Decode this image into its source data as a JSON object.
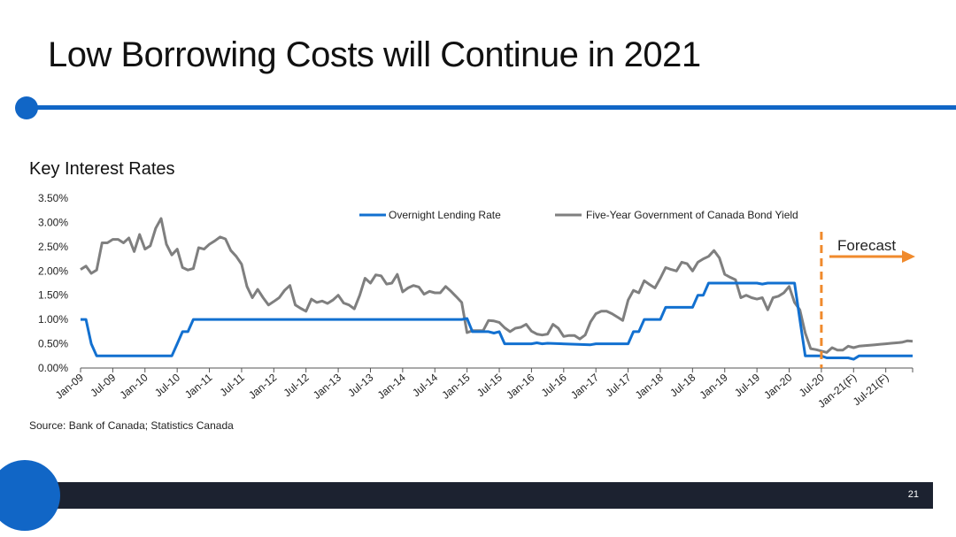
{
  "slide": {
    "title": "Low Borrowing Costs will Continue in 2021",
    "page_number": "21",
    "source": "Source: Bank of Canada; Statistics Canada",
    "accent_color": "#1166c6",
    "footer_color": "#1c2230"
  },
  "chart_data": {
    "type": "line",
    "title": "Key Interest Rates",
    "xlabel": "",
    "ylabel": "",
    "ylim": [
      0,
      3.5
    ],
    "y_ticks": [
      "0.00%",
      "0.50%",
      "1.00%",
      "1.50%",
      "2.00%",
      "2.50%",
      "3.00%",
      "3.50%"
    ],
    "x_tick_labels": [
      "Jan-09",
      "Jul-09",
      "Jan-10",
      "Jul-10",
      "Jan-11",
      "Jul-11",
      "Jan-12",
      "Jul-12",
      "Jan-13",
      "Jul-13",
      "Jan-14",
      "Jul-14",
      "Jan-15",
      "Jul-15",
      "Jan-16",
      "Jul-16",
      "Jan-17",
      "Jul-17",
      "Jan-18",
      "Jul-18",
      "Jan-19",
      "Jul-19",
      "Jan-20",
      "Jul-20",
      "Jan-21(F)",
      "Jul-21(F)"
    ],
    "grid": false,
    "legend_position": "top",
    "forecast_marker": {
      "label": "Forecast",
      "at": "Jul-20",
      "color": "#f08a2c"
    },
    "series": [
      {
        "name": "Overnight Lending Rate",
        "color": "#1270d0",
        "points": [
          [
            "Jan-09",
            1.0
          ],
          [
            "Feb-09",
            1.0
          ],
          [
            "Mar-09",
            0.5
          ],
          [
            "Apr-09",
            0.25
          ],
          [
            "Jun-10",
            0.25
          ],
          [
            "Jul-10",
            0.5
          ],
          [
            "Aug-10",
            0.75
          ],
          [
            "Sep-10",
            0.75
          ],
          [
            "Oct-10",
            1.0
          ],
          [
            "Dec-14",
            1.0
          ],
          [
            "Jan-15",
            1.02
          ],
          [
            "Feb-15",
            0.75
          ],
          [
            "May-15",
            0.75
          ],
          [
            "Jun-15",
            0.72
          ],
          [
            "Jul-15",
            0.75
          ],
          [
            "Aug-15",
            0.5
          ],
          [
            "Jan-16",
            0.5
          ],
          [
            "Feb-16",
            0.52
          ],
          [
            "Mar-16",
            0.5
          ],
          [
            "Apr-16",
            0.51
          ],
          [
            "Dec-16",
            0.48
          ],
          [
            "Jan-17",
            0.5
          ],
          [
            "Jul-17",
            0.5
          ],
          [
            "Aug-17",
            0.75
          ],
          [
            "Sep-17",
            0.75
          ],
          [
            "Oct-17",
            1.0
          ],
          [
            "Jan-18",
            1.0
          ],
          [
            "Feb-18",
            1.25
          ],
          [
            "Jul-18",
            1.25
          ],
          [
            "Aug-18",
            1.5
          ],
          [
            "Sep-18",
            1.5
          ],
          [
            "Oct-18",
            1.75
          ],
          [
            "Jul-19",
            1.75
          ],
          [
            "Aug-19",
            1.73
          ],
          [
            "Sep-19",
            1.75
          ],
          [
            "Feb-20",
            1.75
          ],
          [
            "Mar-20",
            1.0
          ],
          [
            "Apr-20",
            0.25
          ],
          [
            "May-20",
            0.25
          ],
          [
            "Jul-20",
            0.25
          ],
          [
            "Aug-20",
            0.21
          ],
          [
            "Dec-20",
            0.21
          ],
          [
            "Jan-21(F)",
            0.18
          ],
          [
            "Feb-21(F)",
            0.25
          ],
          [
            "Dec-21(F)",
            0.25
          ]
        ]
      },
      {
        "name": "Five-Year Government of Canada Bond Yield",
        "color": "#7f7f7f",
        "points": [
          [
            "Jan-09",
            2.03
          ],
          [
            "Feb-09",
            2.1
          ],
          [
            "Mar-09",
            1.95
          ],
          [
            "Apr-09",
            2.02
          ],
          [
            "May-09",
            2.58
          ],
          [
            "Jun-09",
            2.58
          ],
          [
            "Jul-09",
            2.65
          ],
          [
            "Aug-09",
            2.65
          ],
          [
            "Sep-09",
            2.58
          ],
          [
            "Oct-09",
            2.68
          ],
          [
            "Nov-09",
            2.4
          ],
          [
            "Dec-09",
            2.75
          ],
          [
            "Jan-10",
            2.45
          ],
          [
            "Feb-10",
            2.52
          ],
          [
            "Mar-10",
            2.88
          ],
          [
            "Apr-10",
            3.08
          ],
          [
            "May-10",
            2.55
          ],
          [
            "Jun-10",
            2.33
          ],
          [
            "Jul-10",
            2.45
          ],
          [
            "Aug-10",
            2.07
          ],
          [
            "Sep-10",
            2.02
          ],
          [
            "Oct-10",
            2.05
          ],
          [
            "Nov-10",
            2.48
          ],
          [
            "Dec-10",
            2.45
          ],
          [
            "Jan-11",
            2.55
          ],
          [
            "Feb-11",
            2.62
          ],
          [
            "Mar-11",
            2.7
          ],
          [
            "Apr-11",
            2.66
          ],
          [
            "May-11",
            2.42
          ],
          [
            "Jun-11",
            2.3
          ],
          [
            "Jul-11",
            2.14
          ],
          [
            "Aug-11",
            1.68
          ],
          [
            "Sep-11",
            1.45
          ],
          [
            "Oct-11",
            1.62
          ],
          [
            "Nov-11",
            1.45
          ],
          [
            "Dec-11",
            1.3
          ],
          [
            "Jan-12",
            1.37
          ],
          [
            "Feb-12",
            1.45
          ],
          [
            "Mar-12",
            1.6
          ],
          [
            "Apr-12",
            1.7
          ],
          [
            "May-12",
            1.3
          ],
          [
            "Jun-12",
            1.23
          ],
          [
            "Jul-12",
            1.17
          ],
          [
            "Aug-12",
            1.42
          ],
          [
            "Sep-12",
            1.35
          ],
          [
            "Oct-12",
            1.38
          ],
          [
            "Nov-12",
            1.33
          ],
          [
            "Dec-12",
            1.4
          ],
          [
            "Jan-13",
            1.5
          ],
          [
            "Feb-13",
            1.34
          ],
          [
            "Mar-13",
            1.3
          ],
          [
            "Apr-13",
            1.22
          ],
          [
            "May-13",
            1.5
          ],
          [
            "Jun-13",
            1.85
          ],
          [
            "Jul-13",
            1.75
          ],
          [
            "Aug-13",
            1.92
          ],
          [
            "Sep-13",
            1.9
          ],
          [
            "Oct-13",
            1.73
          ],
          [
            "Nov-13",
            1.75
          ],
          [
            "Dec-13",
            1.93
          ],
          [
            "Jan-14",
            1.57
          ],
          [
            "Feb-14",
            1.65
          ],
          [
            "Mar-14",
            1.7
          ],
          [
            "Apr-14",
            1.67
          ],
          [
            "May-14",
            1.52
          ],
          [
            "Jun-14",
            1.58
          ],
          [
            "Jul-14",
            1.55
          ],
          [
            "Aug-14",
            1.55
          ],
          [
            "Sep-14",
            1.68
          ],
          [
            "Oct-14",
            1.58
          ],
          [
            "Nov-14",
            1.47
          ],
          [
            "Dec-14",
            1.35
          ],
          [
            "Jan-15",
            0.73
          ],
          [
            "Feb-15",
            0.77
          ],
          [
            "Mar-15",
            0.77
          ],
          [
            "Apr-15",
            0.77
          ],
          [
            "May-15",
            0.98
          ],
          [
            "Jun-15",
            0.97
          ],
          [
            "Jul-15",
            0.94
          ],
          [
            "Aug-15",
            0.83
          ],
          [
            "Sep-15",
            0.75
          ],
          [
            "Oct-15",
            0.82
          ],
          [
            "Nov-15",
            0.84
          ],
          [
            "Dec-15",
            0.9
          ],
          [
            "Jan-16",
            0.76
          ],
          [
            "Feb-16",
            0.7
          ],
          [
            "Mar-16",
            0.68
          ],
          [
            "Apr-16",
            0.7
          ],
          [
            "May-16",
            0.9
          ],
          [
            "Jun-16",
            0.82
          ],
          [
            "Jul-16",
            0.65
          ],
          [
            "Aug-16",
            0.67
          ],
          [
            "Sep-16",
            0.67
          ],
          [
            "Oct-16",
            0.6
          ],
          [
            "Nov-16",
            0.68
          ],
          [
            "Dec-16",
            0.95
          ],
          [
            "Jan-17",
            1.12
          ],
          [
            "Feb-17",
            1.17
          ],
          [
            "Mar-17",
            1.17
          ],
          [
            "Apr-17",
            1.12
          ],
          [
            "May-17",
            1.05
          ],
          [
            "Jun-17",
            0.98
          ],
          [
            "Jul-17",
            1.4
          ],
          [
            "Aug-17",
            1.6
          ],
          [
            "Sep-17",
            1.55
          ],
          [
            "Oct-17",
            1.8
          ],
          [
            "Nov-17",
            1.72
          ],
          [
            "Dec-17",
            1.65
          ],
          [
            "Jan-18",
            1.85
          ],
          [
            "Feb-18",
            2.07
          ],
          [
            "Mar-18",
            2.03
          ],
          [
            "Apr-18",
            2.0
          ],
          [
            "May-18",
            2.18
          ],
          [
            "Jun-18",
            2.15
          ],
          [
            "Jul-18",
            2.0
          ],
          [
            "Aug-18",
            2.18
          ],
          [
            "Sep-18",
            2.25
          ],
          [
            "Oct-18",
            2.3
          ],
          [
            "Nov-18",
            2.42
          ],
          [
            "Dec-18",
            2.27
          ],
          [
            "Jan-19",
            1.93
          ],
          [
            "Feb-19",
            1.87
          ],
          [
            "Mar-19",
            1.82
          ],
          [
            "Apr-19",
            1.45
          ],
          [
            "May-19",
            1.5
          ],
          [
            "Jun-19",
            1.45
          ],
          [
            "Jul-19",
            1.42
          ],
          [
            "Aug-19",
            1.45
          ],
          [
            "Sep-19",
            1.2
          ],
          [
            "Oct-19",
            1.45
          ],
          [
            "Nov-19",
            1.48
          ],
          [
            "Dec-19",
            1.55
          ],
          [
            "Jan-20",
            1.68
          ],
          [
            "Feb-20",
            1.35
          ],
          [
            "Mar-20",
            1.2
          ],
          [
            "Apr-20",
            0.72
          ],
          [
            "May-20",
            0.4
          ],
          [
            "Jun-20",
            0.38
          ],
          [
            "Jul-20",
            0.35
          ],
          [
            "Aug-20",
            0.32
          ],
          [
            "Sep-20",
            0.42
          ],
          [
            "Oct-20",
            0.37
          ],
          [
            "Nov-20",
            0.37
          ],
          [
            "Dec-20",
            0.45
          ],
          [
            "Jan-21(F)",
            0.42
          ],
          [
            "Feb-21(F)",
            0.45
          ],
          [
            "Mar-21(F)",
            0.46
          ],
          [
            "Apr-21(F)",
            0.47
          ],
          [
            "May-21(F)",
            0.48
          ],
          [
            "Jun-21(F)",
            0.49
          ],
          [
            "Jul-21(F)",
            0.5
          ],
          [
            "Aug-21(F)",
            0.51
          ],
          [
            "Sep-21(F)",
            0.52
          ],
          [
            "Oct-21(F)",
            0.53
          ],
          [
            "Nov-21(F)",
            0.56
          ],
          [
            "Dec-21(F)",
            0.55
          ]
        ]
      }
    ]
  }
}
